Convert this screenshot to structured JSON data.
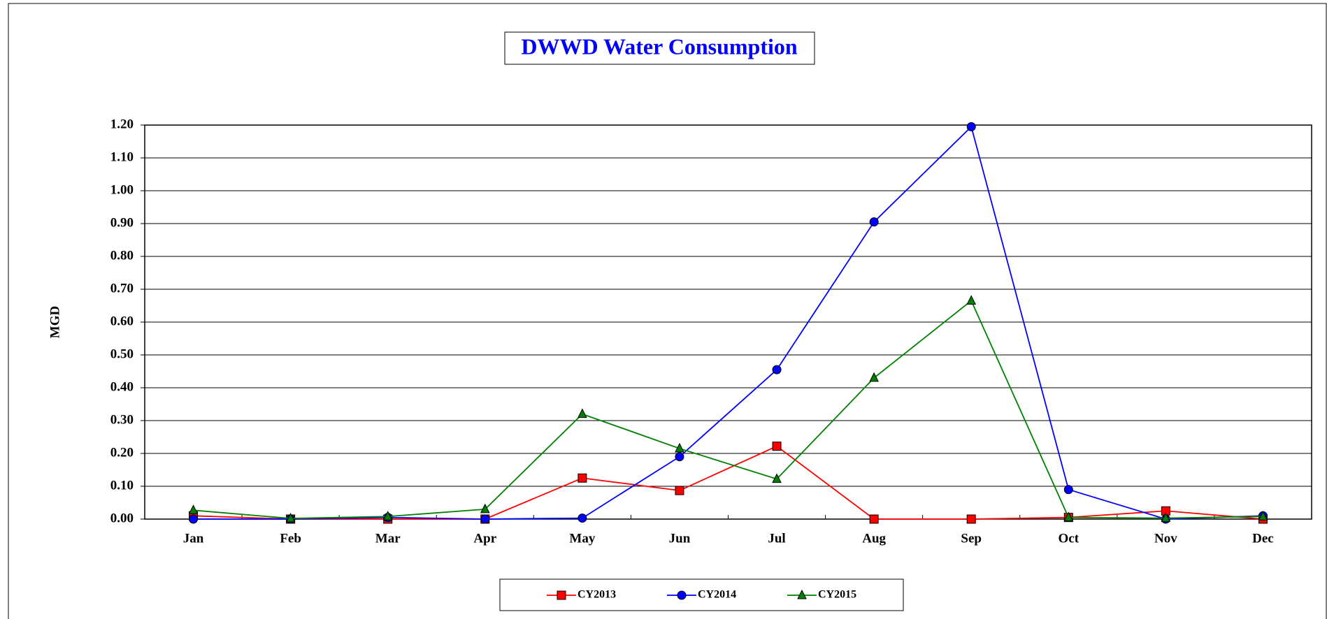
{
  "chart_data": {
    "type": "line",
    "title": "DWWD Water Consumption",
    "y_label": "MGD",
    "categories": [
      "Jan",
      "Feb",
      "Mar",
      "Apr",
      "May",
      "Jun",
      "Jul",
      "Aug",
      "Sep",
      "Oct",
      "Nov",
      "Dec"
    ],
    "series": [
      {
        "name": "CY2013",
        "color": "#ff0000",
        "marker": "square",
        "values": [
          0.01,
          0.0,
          0.0,
          0.0,
          0.125,
          0.087,
          0.222,
          0.0,
          0.0,
          0.005,
          0.025,
          0.0
        ]
      },
      {
        "name": "CY2014",
        "color": "#0000ff",
        "marker": "circle",
        "values": [
          0.0,
          0.0,
          0.005,
          0.0,
          0.003,
          0.19,
          0.455,
          0.905,
          1.195,
          0.09,
          0.0,
          0.01
        ]
      },
      {
        "name": "CY2015",
        "color": "#008000",
        "marker": "triangle",
        "values": [
          0.027,
          0.002,
          0.008,
          0.03,
          0.32,
          0.215,
          0.122,
          0.43,
          0.665,
          0.005,
          0.003,
          0.008
        ]
      }
    ],
    "ylim": [
      0,
      1.2
    ],
    "yticks": [
      {
        "value": 0,
        "label": "0.00"
      },
      {
        "value": 0.1,
        "label": "0.10"
      },
      {
        "value": 0.2,
        "label": "0.20"
      },
      {
        "value": 0.3,
        "label": "0.30"
      },
      {
        "value": 0.4,
        "label": "0.40"
      },
      {
        "value": 0.5,
        "label": "0.50"
      },
      {
        "value": 0.6,
        "label": "0.60"
      },
      {
        "value": 0.7,
        "label": "0.70"
      },
      {
        "value": 0.8,
        "label": "0.80"
      },
      {
        "value": 0.9,
        "label": "0.90"
      },
      {
        "value": 1.0,
        "label": "1.00"
      },
      {
        "value": 1.1,
        "label": "1.10"
      },
      {
        "value": 1.2,
        "label": "1.20"
      }
    ],
    "grid": true,
    "legend": "bottom"
  }
}
